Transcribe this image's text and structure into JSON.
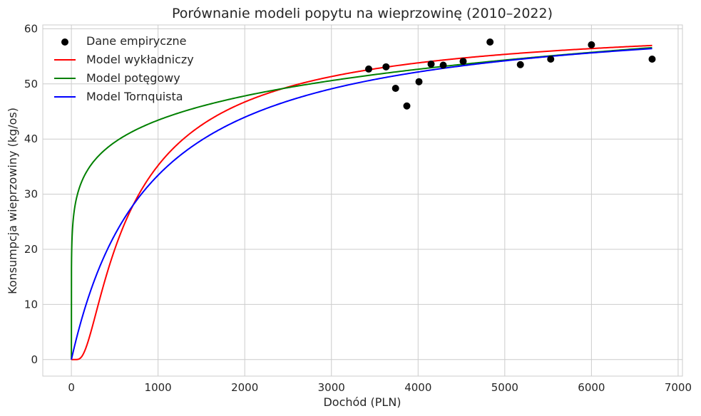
{
  "chart_data": {
    "type": "line",
    "title": "Porównanie modeli popytu na wieprzowinę (2010–2022)",
    "xlabel": "Dochód (PLN)",
    "ylabel": "Konsumpcja wieprzowiny (kg/os)",
    "xlim": [
      -330,
      7050
    ],
    "ylim": [
      -3,
      60.7
    ],
    "xticks": [
      0,
      1000,
      2000,
      3000,
      4000,
      5000,
      6000,
      7000
    ],
    "xtick_labels": [
      "0",
      "1000",
      "2000",
      "3000",
      "4000",
      "5000",
      "6000",
      "7000"
    ],
    "yticks": [
      0,
      10,
      20,
      30,
      40,
      50,
      60
    ],
    "ytick_labels": [
      "0",
      "10",
      "20",
      "30",
      "40",
      "50",
      "60"
    ],
    "grid": true,
    "legend_position": "top-left",
    "scatter": {
      "name": "Dane empiryczne",
      "color": "#000000",
      "points": [
        {
          "x": 3430,
          "y": 52.7
        },
        {
          "x": 3630,
          "y": 53.1
        },
        {
          "x": 3740,
          "y": 49.2
        },
        {
          "x": 3870,
          "y": 46.0
        },
        {
          "x": 4010,
          "y": 50.4
        },
        {
          "x": 4150,
          "y": 53.6
        },
        {
          "x": 4290,
          "y": 53.4
        },
        {
          "x": 4520,
          "y": 54.1
        },
        {
          "x": 4830,
          "y": 57.6
        },
        {
          "x": 5180,
          "y": 53.5
        },
        {
          "x": 5530,
          "y": 54.5
        },
        {
          "x": 6000,
          "y": 57.1
        },
        {
          "x": 6700,
          "y": 54.5
        }
      ]
    },
    "series": [
      {
        "name": "Model wykładniczy",
        "color": "#ff0000",
        "model": "exponential",
        "params": {
          "a": 4.127,
          "b": 565.7
        },
        "x_range": [
          0,
          6700
        ]
      },
      {
        "name": "Model potęgowy",
        "color": "#008000",
        "model": "power",
        "params": {
          "a": 16.6,
          "b": 0.1392
        },
        "x_range": [
          0,
          6700
        ]
      },
      {
        "name": "Model Tornquista",
        "color": "#0000ff",
        "model": "tornquist",
        "params": {
          "a": 64.14,
          "b": 918.3
        },
        "x_range": [
          0,
          6700
        ]
      }
    ]
  }
}
